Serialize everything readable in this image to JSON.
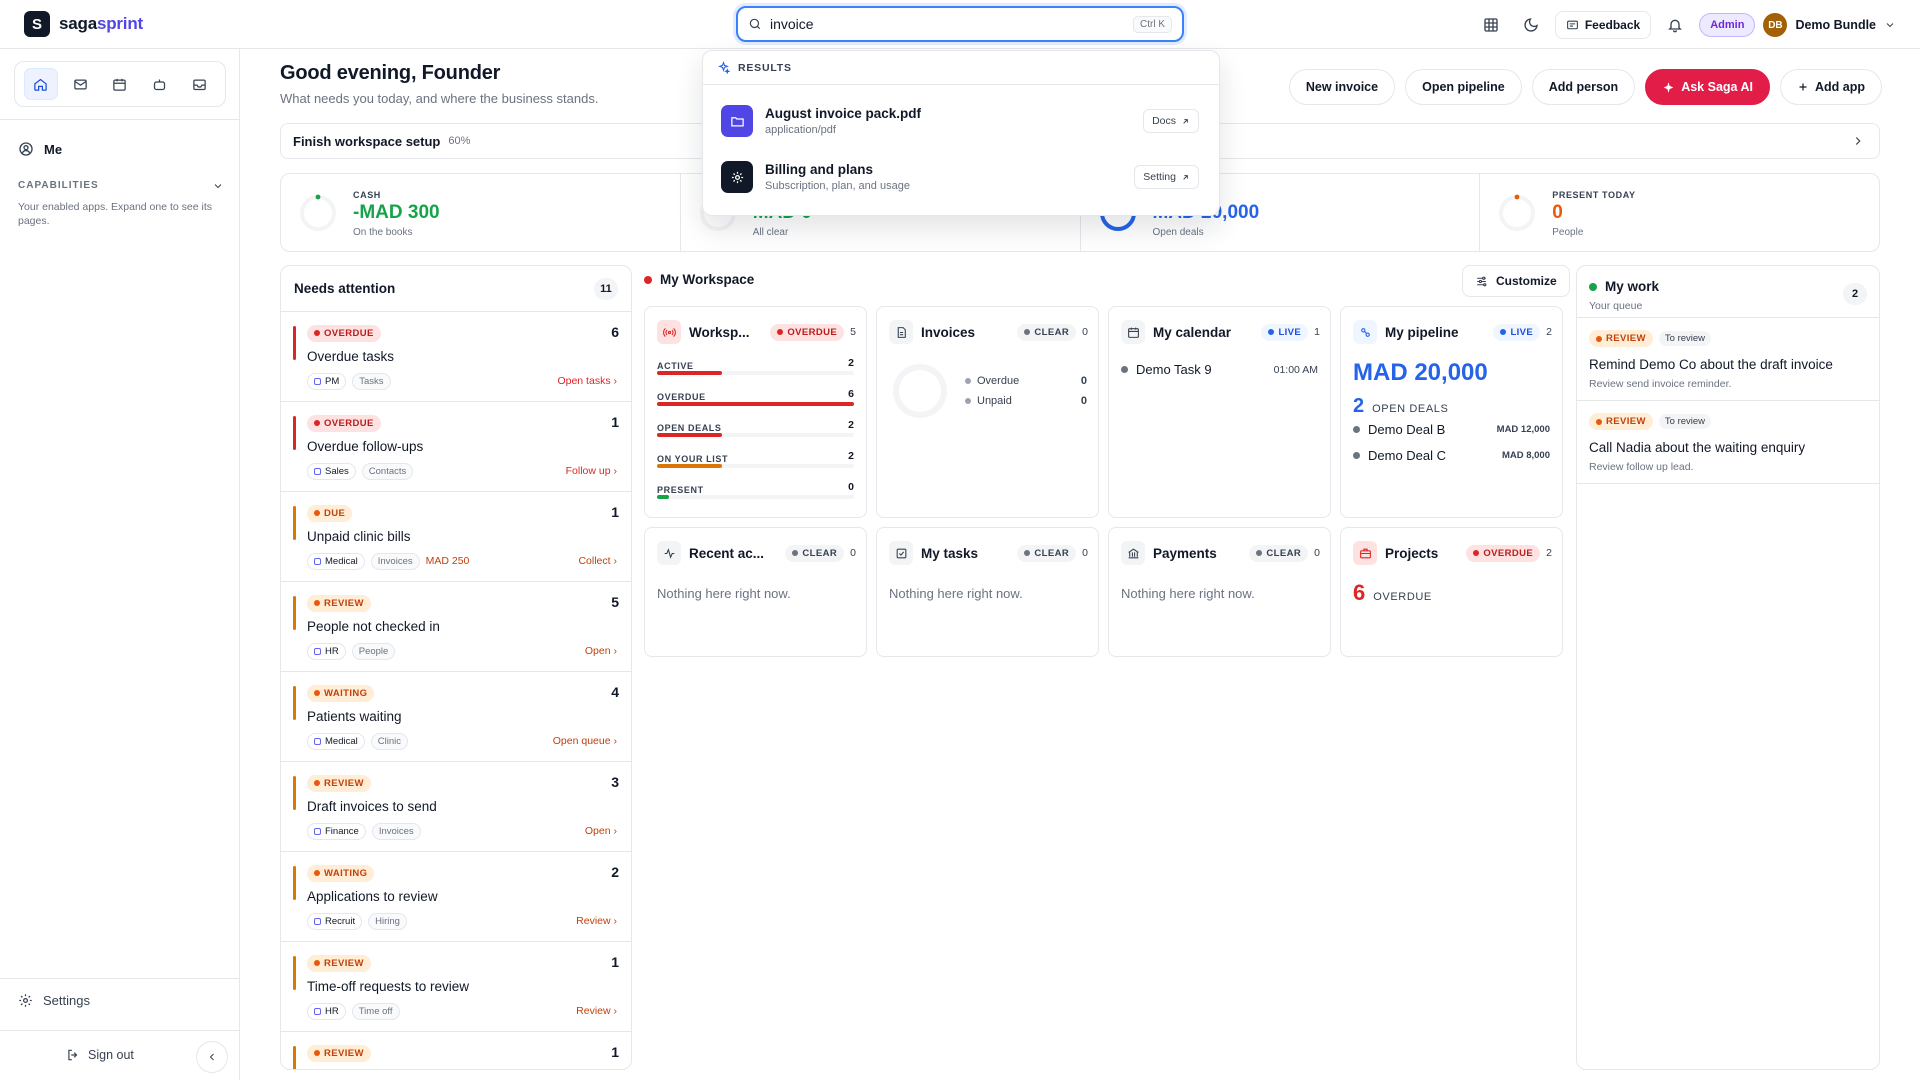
{
  "app": {
    "logo_mark": "S",
    "brand_bold": "saga",
    "brand_color": "sprint"
  },
  "search": {
    "value": "invoice",
    "shortcut": "Ctrl K"
  },
  "topbar": {
    "feedback": "Feedback",
    "admin": "Admin",
    "user_initials": "DB",
    "user_name": "Demo Bundle"
  },
  "sidebar": {
    "me": "Me",
    "capabilities_title": "CAPABILITIES",
    "capabilities_desc": "Your enabled apps. Expand one to see its pages.",
    "settings": "Settings",
    "sign_out": "Sign out"
  },
  "header": {
    "greeting": "Good evening, Founder",
    "subtitle": "What needs you today, and where the business stands.",
    "actions": [
      "New invoice",
      "Open pipeline",
      "Add person",
      "Ask Saga AI",
      "Add app"
    ]
  },
  "setup": {
    "label": "Finish workspace setup",
    "percent": "60%",
    "progress": 0.6
  },
  "stats": [
    {
      "label": "CASH",
      "value": "-MAD 300",
      "sub": "On the books",
      "color": "#16a34a"
    },
    {
      "label": "",
      "value": "MAD 0",
      "sub": "All clear",
      "color": "#16a34a"
    },
    {
      "label": "",
      "value": "MAD 20,000",
      "sub": "Open deals",
      "color": "#2563eb"
    },
    {
      "label": "PRESENT TODAY",
      "value": "0",
      "sub": "People",
      "color": "#ea580c"
    }
  ],
  "needs_attention": {
    "title": "Needs attention",
    "count": "11",
    "items": [
      {
        "badge": "OVERDUE",
        "tone": "red",
        "count": "6",
        "title": "Overdue tasks",
        "app": "PM",
        "section": "Tasks",
        "extra": "",
        "link": "Open tasks"
      },
      {
        "badge": "OVERDUE",
        "tone": "red",
        "count": "1",
        "title": "Overdue follow-ups",
        "app": "Sales",
        "section": "Contacts",
        "extra": "",
        "link": "Follow up"
      },
      {
        "badge": "DUE",
        "tone": "amber",
        "count": "1",
        "title": "Unpaid clinic bills",
        "app": "Medical",
        "section": "Invoices",
        "extra": "MAD 250",
        "link": "Collect"
      },
      {
        "badge": "REVIEW",
        "tone": "amber",
        "count": "5",
        "title": "People not checked in",
        "app": "HR",
        "section": "People",
        "extra": "",
        "link": "Open"
      },
      {
        "badge": "WAITING",
        "tone": "amber",
        "count": "4",
        "title": "Patients waiting",
        "app": "Medical",
        "section": "Clinic",
        "extra": "",
        "link": "Open queue"
      },
      {
        "badge": "REVIEW",
        "tone": "amber",
        "count": "3",
        "title": "Draft invoices to send",
        "app": "Finance",
        "section": "Invoices",
        "extra": "",
        "link": "Open"
      },
      {
        "badge": "WAITING",
        "tone": "amber",
        "count": "2",
        "title": "Applications to review",
        "app": "Recruit",
        "section": "Hiring",
        "extra": "",
        "link": "Review"
      },
      {
        "badge": "REVIEW",
        "tone": "amber",
        "count": "1",
        "title": "Time-off requests to review",
        "app": "HR",
        "section": "Time off",
        "extra": "",
        "link": "Review"
      },
      {
        "badge": "REVIEW",
        "tone": "amber",
        "count": "1",
        "title": "",
        "app": "",
        "section": "",
        "extra": "",
        "link": ""
      }
    ]
  },
  "workspace": {
    "title": "My Workspace",
    "customize": "Customize",
    "cards": {
      "workspace": {
        "name": "Worksp...",
        "badge": "OVERDUE",
        "count": "5",
        "rows": [
          {
            "label": "ACTIVE",
            "value": "2",
            "fill": 0.33,
            "color": "#dc2626"
          },
          {
            "label": "OVERDUE",
            "value": "6",
            "fill": 1.0,
            "color": "#dc2626"
          },
          {
            "label": "OPEN DEALS",
            "value": "2",
            "fill": 0.33,
            "color": "#dc2626"
          },
          {
            "label": "ON YOUR LIST",
            "value": "2",
            "fill": 0.33,
            "color": "#d97706"
          },
          {
            "label": "PRESENT",
            "value": "0",
            "fill": 0.06,
            "color": "#16a34a"
          }
        ]
      },
      "invoices": {
        "name": "Invoices",
        "badge": "CLEAR",
        "count": "0",
        "overdue_label": "Overdue",
        "overdue_value": "0",
        "unpaid_label": "Unpaid",
        "unpaid_value": "0"
      },
      "calendar": {
        "name": "My calendar",
        "badge": "LIVE",
        "count": "1",
        "event": "Demo Task 9",
        "time": "01:00 AM"
      },
      "pipeline": {
        "name": "My pipeline",
        "badge": "LIVE",
        "count": "2",
        "amount": "MAD 20,000",
        "deals_count": "2",
        "deals_label": "OPEN DEALS",
        "deals": [
          {
            "name": "Demo Deal B",
            "value": "MAD 12,000"
          },
          {
            "name": "Demo Deal C",
            "value": "MAD 8,000"
          }
        ]
      },
      "recent": {
        "name": "Recent ac...",
        "badge": "CLEAR",
        "count": "0",
        "empty": "Nothing here right now."
      },
      "tasks": {
        "name": "My tasks",
        "badge": "CLEAR",
        "count": "0",
        "empty": "Nothing here right now."
      },
      "payments": {
        "name": "Payments",
        "badge": "CLEAR",
        "count": "0",
        "empty": "Nothing here right now."
      },
      "projects": {
        "name": "Projects",
        "badge": "OVERDUE",
        "count": "2",
        "big": "6",
        "big_label": "OVERDUE"
      }
    }
  },
  "my_work": {
    "title": "My work",
    "subtitle": "Your queue",
    "count": "2",
    "items": [
      {
        "badge": "REVIEW",
        "label": "To review",
        "title": "Remind Demo Co about the draft invoice",
        "desc": "Review send invoice reminder."
      },
      {
        "badge": "REVIEW",
        "label": "To review",
        "title": "Call Nadia about the waiting enquiry",
        "desc": "Review follow up lead."
      }
    ]
  },
  "search_results": {
    "header": "RESULTS",
    "items": [
      {
        "title": "August invoice pack.pdf",
        "sub": "application/pdf",
        "chip": "Docs",
        "icon": "folder-icon",
        "color": "#4f46e5"
      },
      {
        "title": "Billing and plans",
        "sub": "Subscription, plan, and usage",
        "chip": "Setting",
        "icon": "gear-icon",
        "color": "#111827"
      }
    ]
  }
}
